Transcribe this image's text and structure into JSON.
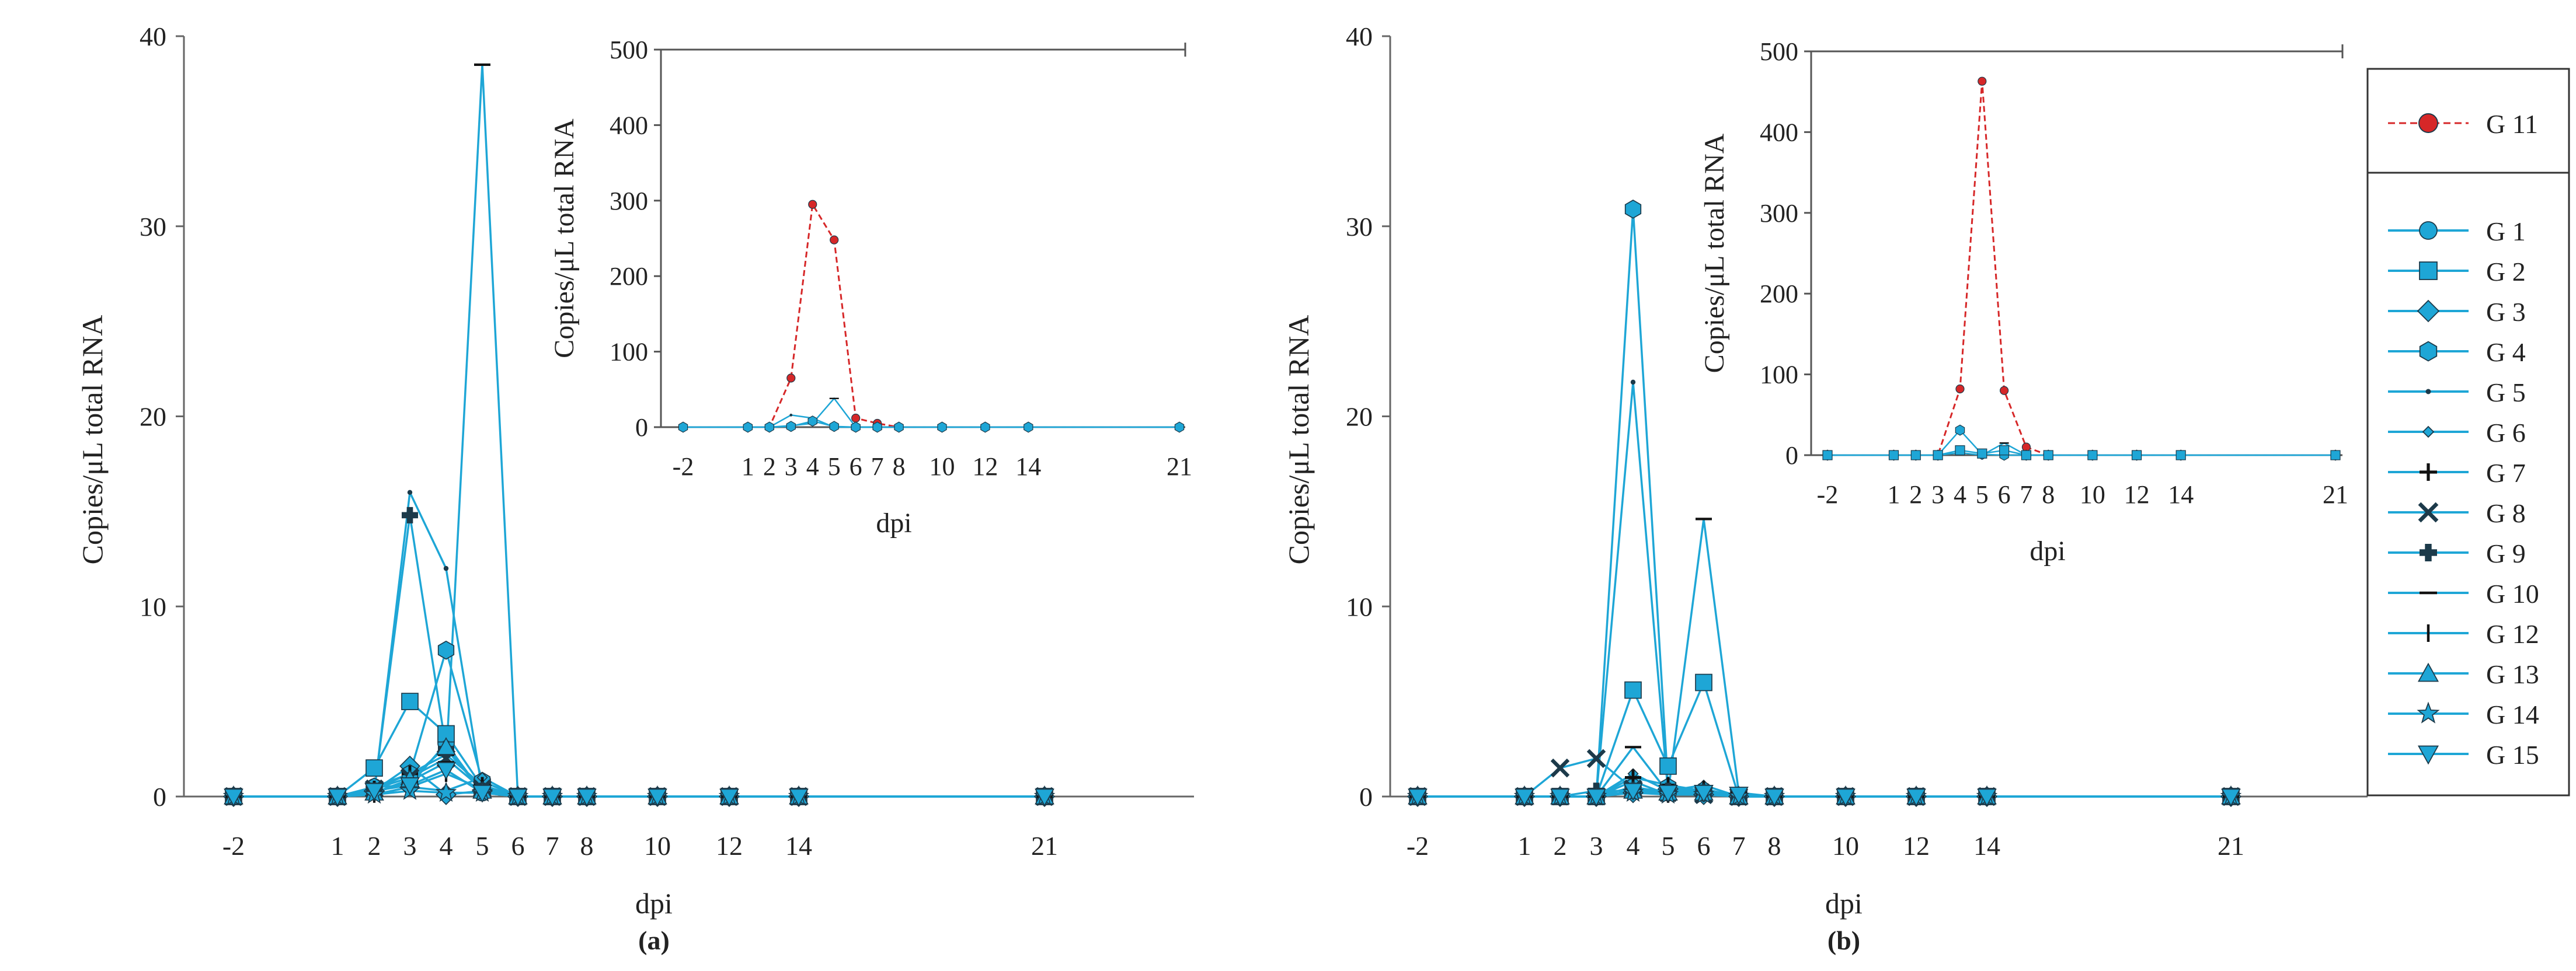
{
  "figure": {
    "legend": [
      {
        "label": "G 11",
        "color": "#d62728",
        "marker": "circle"
      },
      {
        "label": "G 1",
        "color": "#1ea6d6",
        "marker": "circle"
      },
      {
        "label": "G 2",
        "color": "#1ea6d6",
        "marker": "square"
      },
      {
        "label": "G 3",
        "color": "#1ea6d6",
        "marker": "diamond"
      },
      {
        "label": "G 4",
        "color": "#1ea6d6",
        "marker": "hexagon"
      },
      {
        "label": "G 5",
        "color": "#1ea6d6",
        "marker": "dot"
      },
      {
        "label": "G 6",
        "color": "#1ea6d6",
        "marker": "smalldiamond"
      },
      {
        "label": "G 7",
        "color": "#1ea6d6",
        "marker": "plus"
      },
      {
        "label": "G 8",
        "color": "#1ea6d6",
        "marker": "x"
      },
      {
        "label": "G 9",
        "color": "#1ea6d6",
        "marker": "thickplus"
      },
      {
        "label": "G 10",
        "color": "#1ea6d6",
        "marker": "dash"
      },
      {
        "label": "G 12",
        "color": "#1ea6d6",
        "marker": "vbar"
      },
      {
        "label": "G 13",
        "color": "#1ea6d6",
        "marker": "triangle"
      },
      {
        "label": "G 14",
        "color": "#1ea6d6",
        "marker": "star"
      },
      {
        "label": "G 15",
        "color": "#1ea6d6",
        "marker": "triangle-down"
      }
    ]
  },
  "chart_data": [
    {
      "type": "line",
      "panel_label": "(a)",
      "xlabel": "dpi",
      "ylabel": "Copies/μL total RNA",
      "ylim": [
        0,
        40
      ],
      "yticks": [
        0,
        10,
        20,
        30,
        40
      ],
      "x": [
        -2,
        1,
        2,
        3,
        4,
        5,
        6,
        7,
        8,
        10,
        12,
        14,
        21
      ],
      "series": [
        {
          "name": "G 1",
          "values": [
            0,
            0,
            0.5,
            0.6,
            2.8,
            0.2,
            0,
            0,
            0,
            0,
            0,
            0,
            0
          ]
        },
        {
          "name": "G 2",
          "values": [
            0,
            0,
            1.5,
            5.0,
            3.3,
            0.5,
            0,
            0,
            0,
            0,
            0,
            0,
            0
          ]
        },
        {
          "name": "G 3",
          "values": [
            0,
            0,
            0.3,
            1.6,
            0.1,
            0.3,
            0,
            0,
            0,
            0,
            0,
            0,
            0
          ]
        },
        {
          "name": "G 4",
          "values": [
            0,
            0,
            0.5,
            1.2,
            7.7,
            0.8,
            0,
            0,
            0,
            0,
            0,
            0,
            0
          ]
        },
        {
          "name": "G 5",
          "values": [
            0,
            0,
            0.2,
            16.0,
            12.0,
            0.3,
            0,
            0,
            0,
            0,
            0,
            0,
            0
          ]
        },
        {
          "name": "G 6",
          "values": [
            0,
            0,
            0.1,
            0.5,
            0.3,
            1.0,
            0,
            0,
            0,
            0,
            0,
            0,
            0
          ]
        },
        {
          "name": "G 7",
          "values": [
            0,
            0,
            0.4,
            1.2,
            2.2,
            0.6,
            0,
            0,
            0,
            0,
            0,
            0,
            0
          ]
        },
        {
          "name": "G 8",
          "values": [
            0,
            0,
            0.4,
            1.0,
            2.0,
            0.4,
            0,
            0,
            0,
            0,
            0,
            0,
            0
          ]
        },
        {
          "name": "G 9",
          "values": [
            0,
            0,
            0.3,
            14.8,
            2.5,
            0.3,
            0,
            0,
            0,
            0,
            0,
            0,
            0
          ]
        },
        {
          "name": "G 10",
          "values": [
            0,
            0,
            0.2,
            0.8,
            1.8,
            38.5,
            0,
            0,
            0,
            0,
            0,
            0,
            0
          ]
        },
        {
          "name": "G 12",
          "values": [
            0,
            0,
            0.1,
            0.5,
            1.2,
            0.4,
            0,
            0,
            0,
            0,
            0,
            0,
            0
          ]
        },
        {
          "name": "G 13",
          "values": [
            0,
            0,
            0.2,
            0.9,
            2.6,
            0.3,
            0,
            0,
            0,
            0,
            0,
            0,
            0
          ]
        },
        {
          "name": "G 14",
          "values": [
            0,
            0,
            0.1,
            0.3,
            0.2,
            0.2,
            0,
            0,
            0,
            0,
            0,
            0,
            0
          ]
        },
        {
          "name": "G 15",
          "values": [
            0,
            0,
            0.3,
            0.6,
            1.4,
            0.2,
            0,
            0,
            0,
            0,
            0,
            0,
            0
          ]
        }
      ],
      "inset": {
        "xlabel": "dpi",
        "ylabel": "Copies/μL total RNA",
        "ylim": [
          0,
          500
        ],
        "yticks": [
          0,
          100,
          200,
          300,
          400,
          500
        ],
        "x": [
          -2,
          1,
          2,
          3,
          4,
          5,
          6,
          7,
          8,
          10,
          12,
          14,
          21
        ],
        "xtick_labels": [
          "-2",
          "1",
          "2",
          "3",
          "4",
          "5",
          "6",
          "7",
          "8",
          "10",
          "12",
          "14",
          "21"
        ],
        "series": [
          {
            "name": "G 11",
            "values": [
              0,
              0,
              0,
              65,
              295,
              248,
              12,
              5,
              0,
              0,
              0,
              0,
              0
            ]
          },
          {
            "name": "G 10",
            "values": [
              0,
              0,
              0,
              2,
              5,
              38,
              0,
              0,
              0,
              0,
              0,
              0,
              0
            ]
          },
          {
            "name": "G 5",
            "values": [
              0,
              0,
              0,
              16,
              12,
              0,
              0,
              0,
              0,
              0,
              0,
              0,
              0
            ]
          },
          {
            "name": "G 4",
            "values": [
              0,
              0,
              0,
              1,
              8,
              1,
              0,
              0,
              0,
              0,
              0,
              0,
              0
            ]
          }
        ]
      }
    },
    {
      "type": "line",
      "panel_label": "(b)",
      "xlabel": "dpi",
      "ylabel": "Copies/μL total RNA",
      "ylim": [
        0,
        40
      ],
      "yticks": [
        0,
        10,
        20,
        30,
        40
      ],
      "x": [
        -2,
        1,
        2,
        3,
        4,
        5,
        6,
        7,
        8,
        10,
        12,
        14,
        21
      ],
      "series": [
        {
          "name": "G 1",
          "values": [
            0,
            0,
            0,
            0,
            0.5,
            0.2,
            0.3,
            0,
            0,
            0,
            0,
            0,
            0
          ]
        },
        {
          "name": "G 2",
          "values": [
            0,
            0,
            0,
            0,
            5.6,
            1.6,
            6.0,
            0,
            0,
            0,
            0,
            0,
            0
          ]
        },
        {
          "name": "G 3",
          "values": [
            0,
            0,
            0,
            0,
            0.2,
            0.4,
            0.1,
            0,
            0,
            0,
            0,
            0,
            0
          ]
        },
        {
          "name": "G 4",
          "values": [
            0,
            0,
            0,
            0,
            30.9,
            0.5,
            0.2,
            0,
            0,
            0,
            0,
            0,
            0
          ]
        },
        {
          "name": "G 5",
          "values": [
            0,
            0,
            0,
            0,
            21.8,
            0.2,
            0.2,
            0,
            0,
            0,
            0,
            0,
            0
          ]
        },
        {
          "name": "G 6",
          "values": [
            0,
            0,
            0,
            0,
            1.2,
            0.3,
            0.6,
            0,
            0,
            0,
            0,
            0,
            0
          ]
        },
        {
          "name": "G 7",
          "values": [
            0,
            0,
            0,
            0,
            1.0,
            0.6,
            0.3,
            0,
            0,
            0,
            0,
            0,
            0
          ]
        },
        {
          "name": "G 8",
          "values": [
            0,
            0,
            1.5,
            2.0,
            0.4,
            0.2,
            0.1,
            0,
            0,
            0,
            0,
            0,
            0
          ]
        },
        {
          "name": "G 9",
          "values": [
            0,
            0,
            0,
            0.3,
            0.3,
            0.3,
            0.2,
            0,
            0,
            0,
            0,
            0,
            0
          ]
        },
        {
          "name": "G 10",
          "values": [
            0,
            0,
            0,
            0,
            2.6,
            0.2,
            14.6,
            0.2,
            0,
            0,
            0,
            0,
            0
          ]
        },
        {
          "name": "G 12",
          "values": [
            0,
            0,
            0,
            0,
            0.8,
            0.1,
            0.4,
            0,
            0,
            0,
            0,
            0,
            0
          ]
        },
        {
          "name": "G 13",
          "values": [
            0,
            0,
            0,
            0,
            0.3,
            0.2,
            0.2,
            0,
            0,
            0,
            0,
            0,
            0
          ]
        },
        {
          "name": "G 14",
          "values": [
            0,
            0,
            0,
            0,
            0.2,
            0.1,
            0.1,
            0,
            0,
            0,
            0,
            0,
            0
          ]
        },
        {
          "name": "G 15",
          "values": [
            0,
            0,
            0,
            0,
            0.3,
            0.2,
            0.2,
            0.1,
            0,
            0,
            0,
            0,
            0
          ]
        }
      ],
      "inset": {
        "xlabel": "dpi",
        "ylabel": "Copies/μL total RNA",
        "ylim": [
          0,
          500
        ],
        "yticks": [
          0,
          100,
          200,
          300,
          400,
          500
        ],
        "x": [
          -2,
          1,
          2,
          3,
          4,
          5,
          6,
          7,
          8,
          10,
          12,
          14,
          21
        ],
        "xtick_labels": [
          "-2",
          "1",
          "2",
          "3",
          "4",
          "5",
          "6",
          "7",
          "8",
          "10",
          "12",
          "14",
          "21"
        ],
        "series": [
          {
            "name": "G 11",
            "values": [
              0,
              0,
              0,
              0,
              82,
              463,
              80,
              10,
              0,
              0,
              0,
              0,
              0
            ]
          },
          {
            "name": "G 4",
            "values": [
              0,
              0,
              0,
              0,
              31,
              1,
              0,
              0,
              0,
              0,
              0,
              0,
              0
            ]
          },
          {
            "name": "G 10",
            "values": [
              0,
              0,
              0,
              0,
              3,
              0,
              15,
              0,
              0,
              0,
              0,
              0,
              0
            ]
          },
          {
            "name": "G 2",
            "values": [
              0,
              0,
              0,
              0,
              6,
              2,
              6,
              0,
              0,
              0,
              0,
              0,
              0
            ]
          }
        ]
      }
    }
  ]
}
